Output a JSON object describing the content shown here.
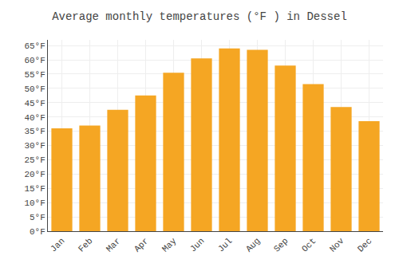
{
  "chart_data": {
    "type": "bar",
    "title": "Average monthly temperatures (°F ) in Dessel",
    "categories": [
      "Jan",
      "Feb",
      "Mar",
      "Apr",
      "May",
      "Jun",
      "Jul",
      "Aug",
      "Sep",
      "Oct",
      "Nov",
      "Dec"
    ],
    "values": [
      36.0,
      37.0,
      42.5,
      47.5,
      55.5,
      60.5,
      64.0,
      63.5,
      58.0,
      51.5,
      43.5,
      38.5
    ],
    "color": "#F5A623",
    "ylim": [
      0,
      67
    ],
    "yticks": [
      {
        "value": 0,
        "label": "0°F"
      },
      {
        "value": 5,
        "label": "5°F"
      },
      {
        "value": 10,
        "label": "10°F"
      },
      {
        "value": 15,
        "label": "15°F"
      },
      {
        "value": 20,
        "label": "20°F"
      },
      {
        "value": 25,
        "label": "25°F"
      },
      {
        "value": 30,
        "label": "30°F"
      },
      {
        "value": 35,
        "label": "35°F"
      },
      {
        "value": 40,
        "label": "40°F"
      },
      {
        "value": 45,
        "label": "45°F"
      },
      {
        "value": 50,
        "label": "50°F"
      },
      {
        "value": 55,
        "label": "55°F"
      },
      {
        "value": 60,
        "label": "60°F"
      },
      {
        "value": 65,
        "label": "65°F"
      }
    ],
    "grid": true
  }
}
